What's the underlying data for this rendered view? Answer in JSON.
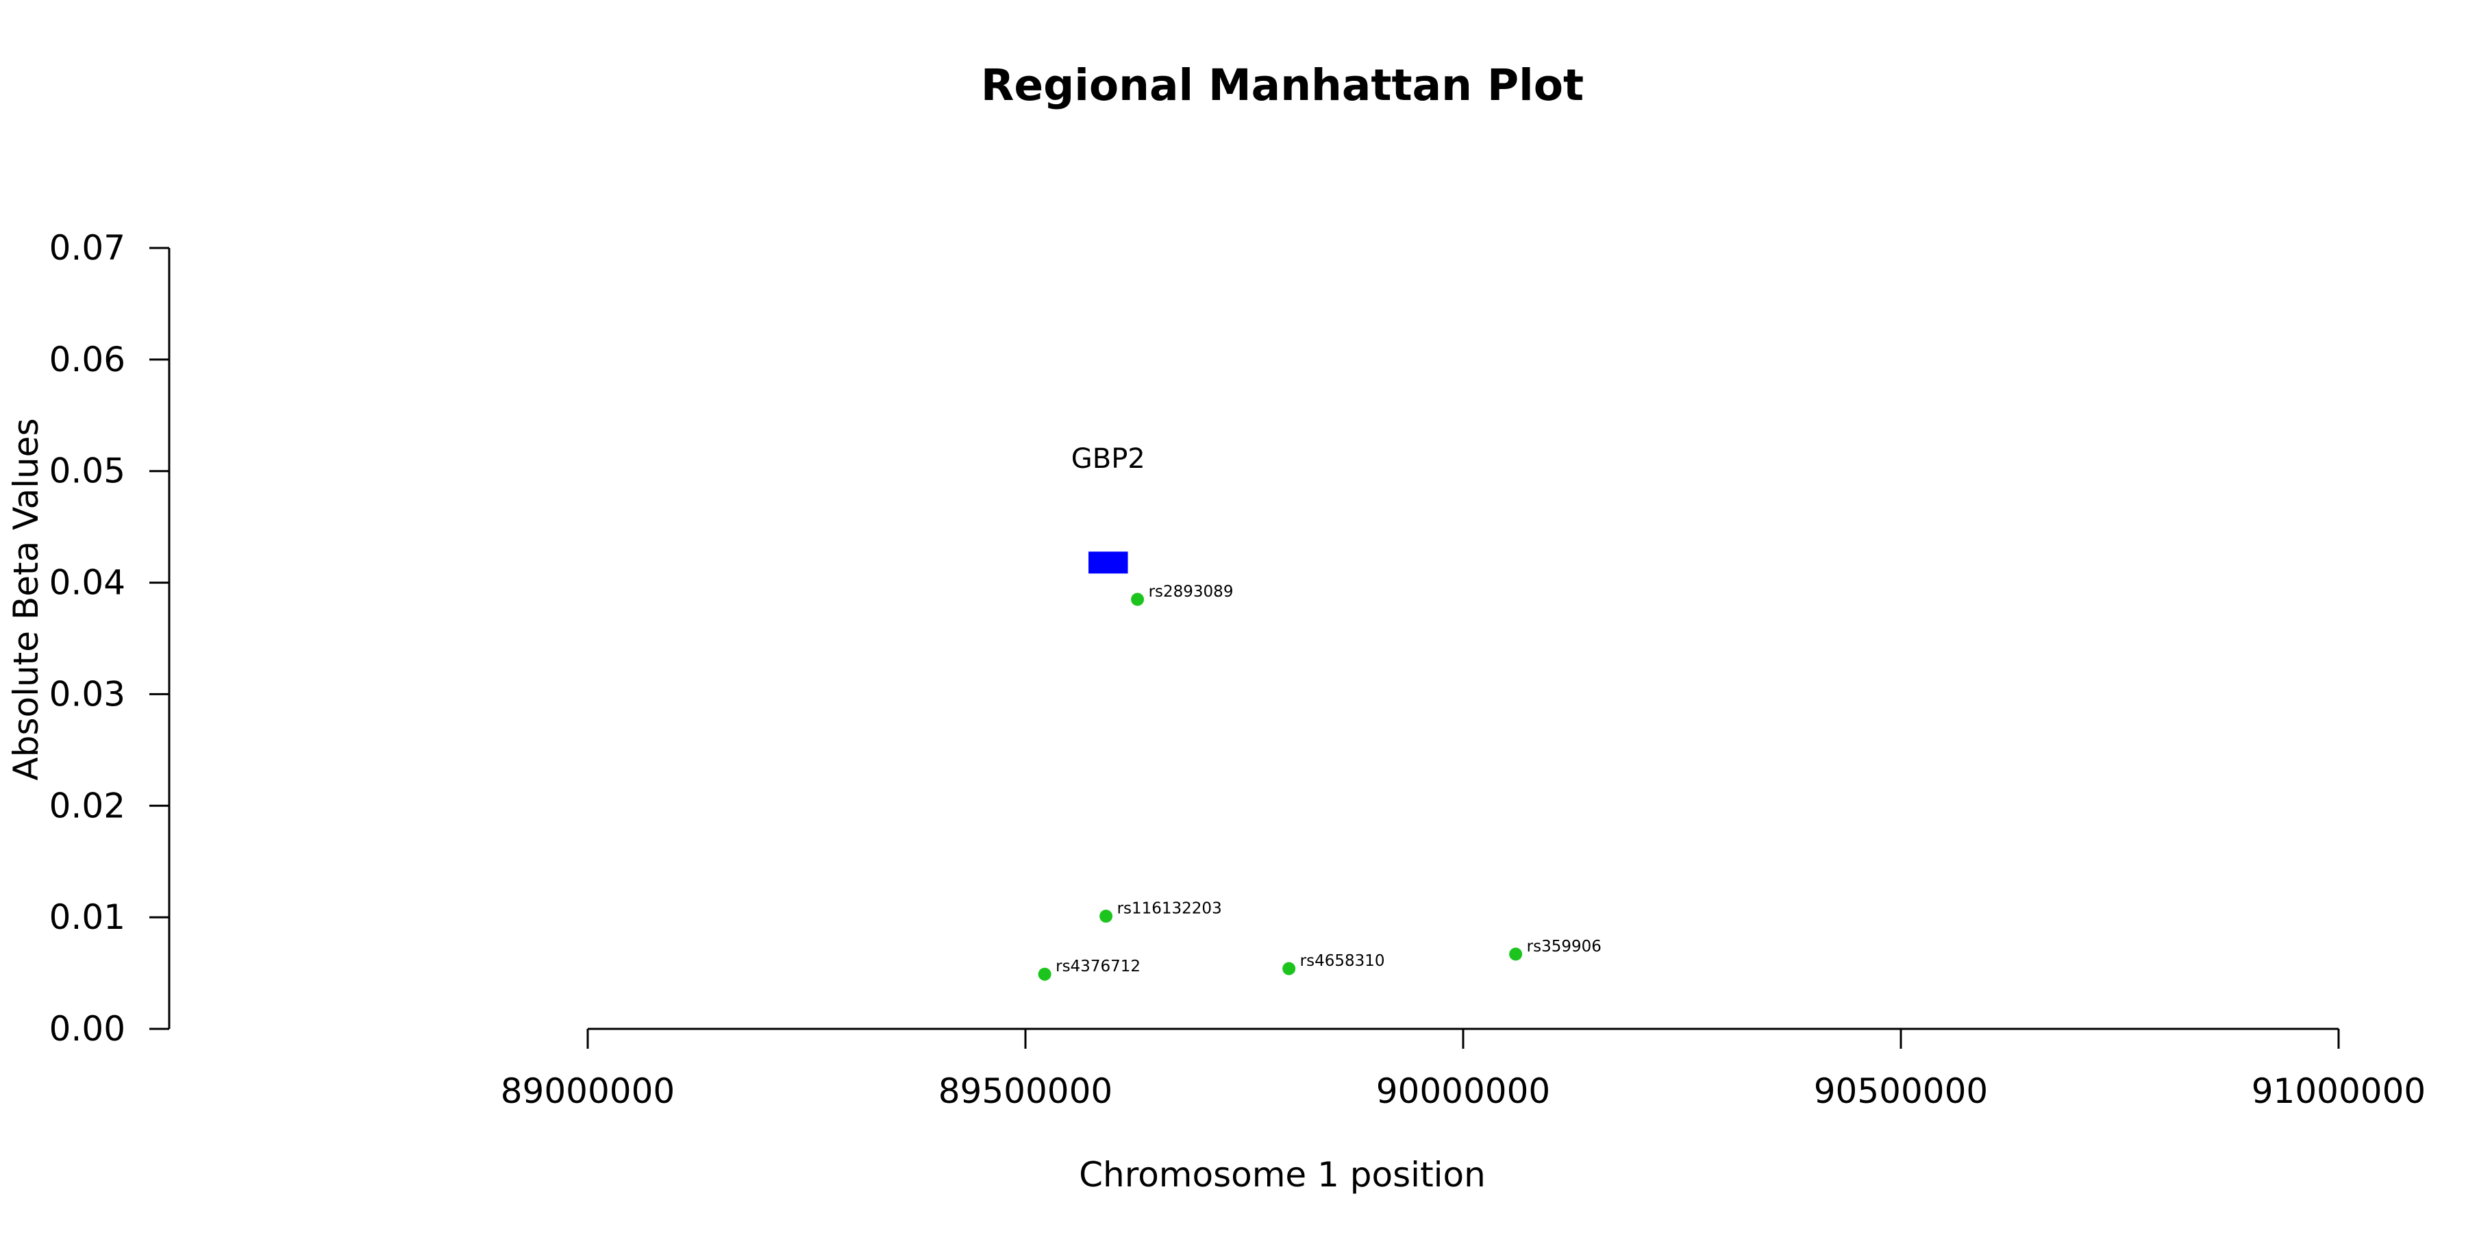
{
  "chart_data": {
    "type": "scatter",
    "title": "Regional Manhattan Plot",
    "xlabel": "Chromosome 1 position",
    "ylabel": "Absolute Beta Values",
    "xlim": [
      89000000,
      91000000
    ],
    "ylim": [
      0,
      0.07
    ],
    "x_ticks": [
      89000000,
      89500000,
      90000000,
      90500000,
      91000000
    ],
    "x_tick_labels": [
      "89000000",
      "89500000",
      "90000000",
      "90500000",
      "91000000"
    ],
    "y_ticks": [
      0,
      0.01,
      0.02,
      0.03,
      0.04,
      0.05,
      0.06,
      0.07
    ],
    "y_tick_labels": [
      "0.00",
      "0.01",
      "0.02",
      "0.03",
      "0.04",
      "0.05",
      "0.06",
      "0.07"
    ],
    "grid": false,
    "point_color": "#1ec41e",
    "series": [
      {
        "points": [
          {
            "label": "rs2893089",
            "x": 89628000,
            "y": 0.0385
          },
          {
            "label": "rs116132203",
            "x": 89592000,
            "y": 0.0101
          },
          {
            "label": "rs4376712",
            "x": 89522000,
            "y": 0.0049
          },
          {
            "label": "rs4658310",
            "x": 89801000,
            "y": 0.0054
          },
          {
            "label": "rs359906",
            "x": 90060000,
            "y": 0.0067
          }
        ]
      }
    ],
    "genes": [
      {
        "name": "GBP2",
        "start": 89572000,
        "end": 89617000,
        "y": 0.0418,
        "label_y": 0.0503,
        "color": "#0000ff"
      }
    ]
  }
}
